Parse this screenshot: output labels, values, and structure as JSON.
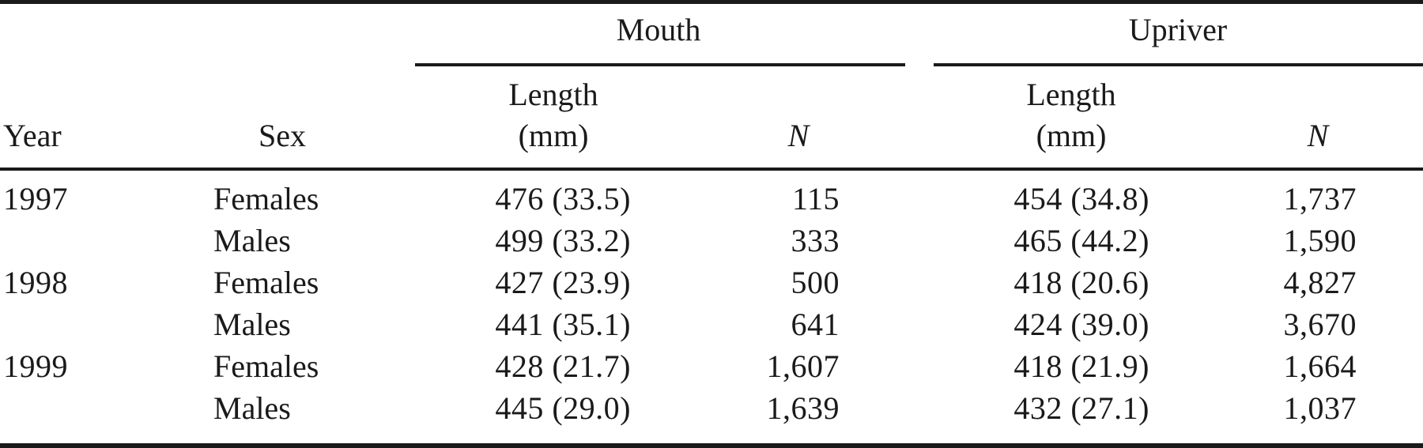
{
  "table": {
    "group_headers": {
      "mouth": "Mouth",
      "upriver": "Upriver"
    },
    "columns": {
      "year": "Year",
      "sex": "Sex",
      "length_line1": "Length",
      "length_line2": "(mm)",
      "n": "N"
    },
    "rows": [
      {
        "year": "1997",
        "sex": "Females",
        "mouth_length": "476 (33.5)",
        "mouth_n": "115",
        "upriver_length": "454 (34.8)",
        "upriver_n": "1,737"
      },
      {
        "year": "",
        "sex": "Males",
        "mouth_length": "499 (33.2)",
        "mouth_n": "333",
        "upriver_length": "465 (44.2)",
        "upriver_n": "1,590"
      },
      {
        "year": "1998",
        "sex": "Females",
        "mouth_length": "427 (23.9)",
        "mouth_n": "500",
        "upriver_length": "418 (20.6)",
        "upriver_n": "4,827"
      },
      {
        "year": "",
        "sex": "Males",
        "mouth_length": "441 (35.1)",
        "mouth_n": "641",
        "upriver_length": "424 (39.0)",
        "upriver_n": "3,670"
      },
      {
        "year": "1999",
        "sex": "Females",
        "mouth_length": "428 (21.7)",
        "mouth_n": "1,607",
        "upriver_length": "418 (21.9)",
        "upriver_n": "1,664"
      },
      {
        "year": "",
        "sex": "Males",
        "mouth_length": "445 (29.0)",
        "mouth_n": "1,639",
        "upriver_length": "432 (27.1)",
        "upriver_n": "1,037"
      }
    ]
  }
}
